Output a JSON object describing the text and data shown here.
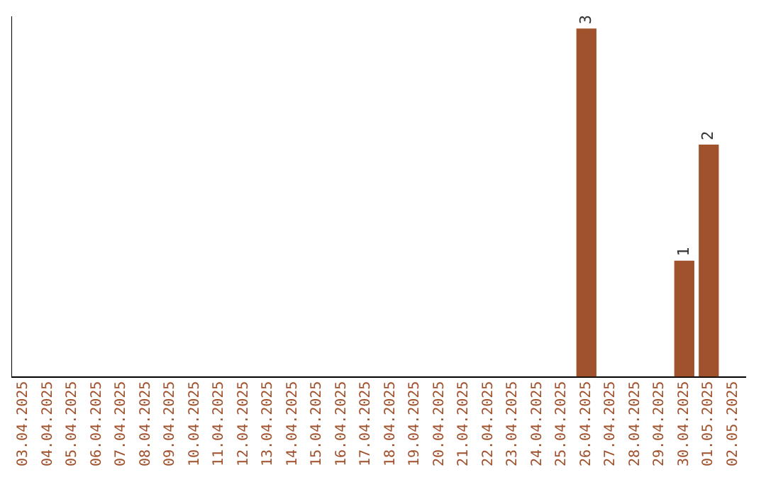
{
  "chart_data": {
    "type": "bar",
    "categories": [
      "03.04.2025",
      "04.04.2025",
      "05.04.2025",
      "06.04.2025",
      "07.04.2025",
      "08.04.2025",
      "09.04.2025",
      "10.04.2025",
      "11.04.2025",
      "12.04.2025",
      "13.04.2025",
      "14.04.2025",
      "15.04.2025",
      "16.04.2025",
      "17.04.2025",
      "18.04.2025",
      "19.04.2025",
      "20.04.2025",
      "21.04.2025",
      "22.04.2025",
      "23.04.2025",
      "24.04.2025",
      "25.04.2025",
      "26.04.2025",
      "27.04.2025",
      "28.04.2025",
      "29.04.2025",
      "30.04.2025",
      "01.05.2025",
      "02.05.2025"
    ],
    "values": [
      null,
      null,
      null,
      null,
      null,
      null,
      null,
      null,
      null,
      null,
      null,
      null,
      null,
      null,
      null,
      null,
      null,
      null,
      null,
      null,
      null,
      null,
      null,
      3,
      null,
      null,
      null,
      1,
      2,
      null
    ],
    "color": "#a0522d",
    "ylim": [
      0,
      3.1
    ],
    "data_labels": true,
    "tick_labels": "x",
    "grid": false,
    "legend": false
  }
}
